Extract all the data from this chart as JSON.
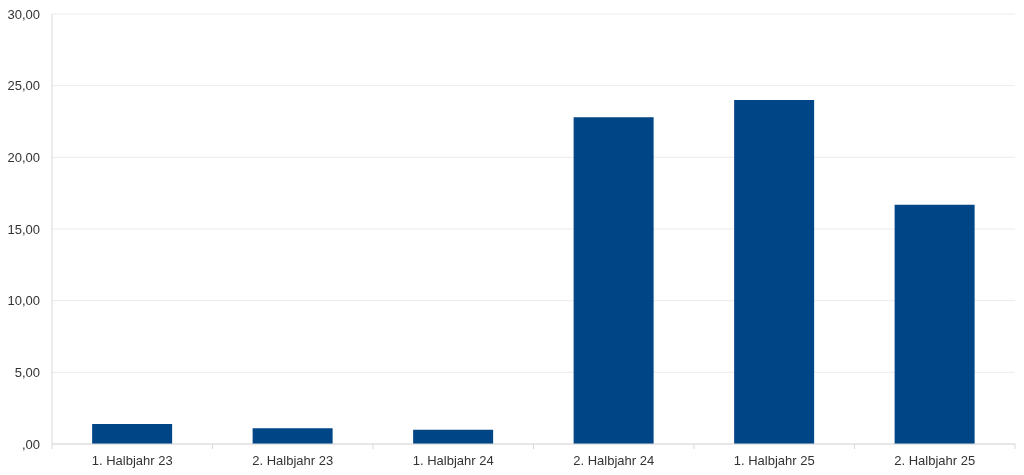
{
  "chart_data": {
    "type": "bar",
    "categories": [
      "1. Halbjahr 23",
      "2. Halbjahr 23",
      "1. Halbjahr 24",
      "2. Halbjahr 24",
      "1. Halbjahr 25",
      "2. Halbjahr 25"
    ],
    "values": [
      1.4,
      1.1,
      1.0,
      22.8,
      24.0,
      16.7
    ],
    "color": "#004586",
    "ylim": [
      0,
      30
    ],
    "yticks": [
      {
        "value": 0,
        "label": ",00"
      },
      {
        "value": 5,
        "label": "5,00"
      },
      {
        "value": 10,
        "label": "10,00"
      },
      {
        "value": 15,
        "label": "15,00"
      },
      {
        "value": 20,
        "label": "20,00"
      },
      {
        "value": 25,
        "label": "25,00"
      },
      {
        "value": 30,
        "label": "30,00"
      }
    ],
    "grid": "y"
  }
}
